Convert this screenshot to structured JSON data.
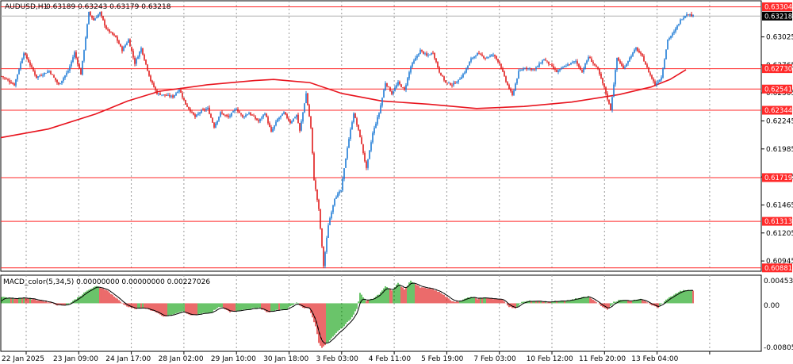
{
  "header": {
    "symbol": "AUDUSD,H1",
    "ohlc": "0.63189 0.63243 0.63179 0.63218"
  },
  "indicator": {
    "label": "MACD_color(5,34,5) 0.00000000 0.00000000 0.00227026",
    "ticks": [
      "0.0045392",
      "0.00",
      "-0.0080563"
    ]
  },
  "chart_data": {
    "type": "candlestick",
    "symbol": "AUDUSD",
    "timeframe": "H1",
    "ylim": [
      0.6085,
      0.6336
    ],
    "y_ticks": [
      "0.63025",
      "0.62765",
      "0.62505",
      "0.62245",
      "0.61985",
      "0.61725",
      "0.61465",
      "0.61205",
      "0.60945"
    ],
    "x_ticks": [
      "22 Jan 2025",
      "23 Jan 09:00",
      "24 Jan 17:00",
      "28 Jan 02:00",
      "29 Jan 10:00",
      "30 Jan 18:00",
      "3 Feb 03:00",
      "4 Feb 11:00",
      "5 Feb 19:00",
      "7 Feb 03:00",
      "10 Feb 12:00",
      "11 Feb 20:00",
      "13 Feb 04:00"
    ],
    "horizontal_levels": [
      "0.63304",
      "0.62730",
      "0.62541",
      "0.62344",
      "0.61719",
      "0.61313",
      "0.60881"
    ],
    "current_price": "0.63218",
    "grid": true,
    "colors": {
      "bull": "#1e7bd6",
      "bear": "#e01b1b",
      "level": "#ff2a2a",
      "ma": "#e8141e",
      "macd_pos": "#1aa31a",
      "macd_neg": "#e01b1b",
      "signal": "#000000",
      "current": "#000000"
    },
    "close_path": [
      [
        0,
        0.6266
      ],
      [
        8,
        0.6258
      ],
      [
        14,
        0.6288
      ],
      [
        22,
        0.6265
      ],
      [
        30,
        0.6271
      ],
      [
        36,
        0.6258
      ],
      [
        42,
        0.6271
      ],
      [
        46,
        0.6288
      ],
      [
        50,
        0.6268
      ],
      [
        55,
        0.6325
      ],
      [
        58,
        0.6318
      ],
      [
        62,
        0.6325
      ],
      [
        66,
        0.631
      ],
      [
        72,
        0.6302
      ],
      [
        76,
        0.629
      ],
      [
        80,
        0.63
      ],
      [
        84,
        0.6278
      ],
      [
        88,
        0.6292
      ],
      [
        94,
        0.6262
      ],
      [
        98,
        0.625
      ],
      [
        104,
        0.6248
      ],
      [
        108,
        0.6247
      ],
      [
        112,
        0.6254
      ],
      [
        116,
        0.624
      ],
      [
        122,
        0.6228
      ],
      [
        126,
        0.6234
      ],
      [
        130,
        0.6236
      ],
      [
        134,
        0.6219
      ],
      [
        138,
        0.6232
      ],
      [
        143,
        0.6228
      ],
      [
        148,
        0.6236
      ],
      [
        152,
        0.6228
      ],
      [
        156,
        0.6232
      ],
      [
        162,
        0.6224
      ],
      [
        166,
        0.6232
      ],
      [
        170,
        0.6214
      ],
      [
        174,
        0.6226
      ],
      [
        178,
        0.6232
      ],
      [
        182,
        0.6223
      ],
      [
        186,
        0.623
      ],
      [
        188,
        0.6215
      ],
      [
        192,
        0.625
      ],
      [
        195,
        0.6218
      ],
      [
        197,
        0.617
      ],
      [
        200,
        0.6142
      ],
      [
        203,
        0.609
      ],
      [
        206,
        0.6128
      ],
      [
        210,
        0.6153
      ],
      [
        214,
        0.616
      ],
      [
        218,
        0.62
      ],
      [
        222,
        0.6232
      ],
      [
        226,
        0.621
      ],
      [
        230,
        0.618
      ],
      [
        234,
        0.6213
      ],
      [
        238,
        0.6232
      ],
      [
        242,
        0.626
      ],
      [
        246,
        0.625
      ],
      [
        250,
        0.626
      ],
      [
        254,
        0.6253
      ],
      [
        258,
        0.6275
      ],
      [
        264,
        0.629
      ],
      [
        268,
        0.6285
      ],
      [
        272,
        0.6288
      ],
      [
        276,
        0.627
      ],
      [
        280,
        0.626
      ],
      [
        284,
        0.6258
      ],
      [
        288,
        0.6262
      ],
      [
        292,
        0.627
      ],
      [
        296,
        0.6282
      ],
      [
        300,
        0.6287
      ],
      [
        305,
        0.6283
      ],
      [
        310,
        0.6286
      ],
      [
        314,
        0.6278
      ],
      [
        318,
        0.6261
      ],
      [
        322,
        0.6248
      ],
      [
        326,
        0.627
      ],
      [
        330,
        0.6274
      ],
      [
        336,
        0.6272
      ],
      [
        342,
        0.6282
      ],
      [
        346,
        0.6276
      ],
      [
        350,
        0.627
      ],
      [
        356,
        0.6276
      ],
      [
        362,
        0.628
      ],
      [
        366,
        0.627
      ],
      [
        370,
        0.6284
      ],
      [
        376,
        0.6272
      ],
      [
        380,
        0.6255
      ],
      [
        384,
        0.6235
      ],
      [
        388,
        0.6283
      ],
      [
        392,
        0.6273
      ],
      [
        396,
        0.6283
      ],
      [
        400,
        0.6292
      ],
      [
        404,
        0.6284
      ],
      [
        408,
        0.627
      ],
      [
        412,
        0.6258
      ],
      [
        416,
        0.6265
      ],
      [
        420,
        0.63
      ],
      [
        424,
        0.6307
      ],
      [
        428,
        0.6318
      ],
      [
        432,
        0.6324
      ],
      [
        436,
        0.6322
      ]
    ],
    "moving_average": [
      [
        0,
        0.6209
      ],
      [
        30,
        0.6217
      ],
      [
        60,
        0.6231
      ],
      [
        80,
        0.6243
      ],
      [
        100,
        0.6252
      ],
      [
        130,
        0.6258
      ],
      [
        160,
        0.6262
      ],
      [
        172,
        0.6263
      ],
      [
        195,
        0.626
      ],
      [
        215,
        0.625
      ],
      [
        240,
        0.6243
      ],
      [
        270,
        0.624
      ],
      [
        300,
        0.6236
      ],
      [
        330,
        0.6238
      ],
      [
        360,
        0.6242
      ],
      [
        390,
        0.6249
      ],
      [
        410,
        0.6256
      ],
      [
        422,
        0.6263
      ],
      [
        432,
        0.6272
      ]
    ],
    "macd": {
      "ylim": [
        -0.0080563,
        0.0045392
      ],
      "histogram": [
        [
          0,
          0.0012
        ],
        [
          8,
          0.0008
        ],
        [
          14,
          0.001
        ],
        [
          22,
          0.0006
        ],
        [
          30,
          0.0002
        ],
        [
          36,
          -0.0004
        ],
        [
          42,
          -0.0002
        ],
        [
          46,
          0.0006
        ],
        [
          50,
          0.0014
        ],
        [
          55,
          0.0024
        ],
        [
          60,
          0.003
        ],
        [
          66,
          0.0024
        ],
        [
          72,
          0.001
        ],
        [
          78,
          -0.0004
        ],
        [
          84,
          -0.001
        ],
        [
          90,
          -0.0008
        ],
        [
          96,
          -0.0014
        ],
        [
          102,
          -0.0024
        ],
        [
          108,
          -0.002
        ],
        [
          114,
          -0.0014
        ],
        [
          120,
          -0.0022
        ],
        [
          126,
          -0.0018
        ],
        [
          132,
          -0.0016
        ],
        [
          138,
          -0.0006
        ],
        [
          144,
          -0.0016
        ],
        [
          150,
          -0.0012
        ],
        [
          156,
          -0.001
        ],
        [
          162,
          -0.0008
        ],
        [
          168,
          -0.0016
        ],
        [
          174,
          -0.0012
        ],
        [
          180,
          -0.001
        ],
        [
          186,
          0.0002
        ],
        [
          190,
          -0.0008
        ],
        [
          194,
          -0.001
        ],
        [
          198,
          -0.004
        ],
        [
          200,
          -0.007
        ],
        [
          202,
          -0.0078
        ],
        [
          204,
          -0.0074
        ],
        [
          208,
          -0.0062
        ],
        [
          212,
          -0.005
        ],
        [
          216,
          -0.004
        ],
        [
          220,
          -0.0028
        ],
        [
          224,
          -0.001
        ],
        [
          226,
          0.0018
        ],
        [
          230,
          0.0004
        ],
        [
          234,
          0.0008
        ],
        [
          238,
          0.0016
        ],
        [
          242,
          0.003
        ],
        [
          246,
          0.0022
        ],
        [
          250,
          0.0036
        ],
        [
          254,
          0.0024
        ],
        [
          258,
          0.004
        ],
        [
          264,
          0.0028
        ],
        [
          270,
          0.0026
        ],
        [
          276,
          0.002
        ],
        [
          280,
          0.0012
        ],
        [
          284,
          0.0004
        ],
        [
          288,
          0.0002
        ],
        [
          292,
          0.0008
        ],
        [
          296,
          0.0012
        ],
        [
          300,
          0.0008
        ],
        [
          305,
          0.001
        ],
        [
          310,
          0.0008
        ],
        [
          316,
          0.0006
        ],
        [
          320,
          -0.0006
        ],
        [
          324,
          -0.001
        ],
        [
          328,
          0.0002
        ],
        [
          332,
          0.0004
        ],
        [
          338,
          0.0004
        ],
        [
          344,
          0.0002
        ],
        [
          350,
          0.0004
        ],
        [
          356,
          0.0004
        ],
        [
          362,
          0.0008
        ],
        [
          366,
          0.001
        ],
        [
          370,
          0.0012
        ],
        [
          374,
          0.0004
        ],
        [
          378,
          -0.0004
        ],
        [
          382,
          -0.0012
        ],
        [
          386,
          0.0002
        ],
        [
          390,
          0.0006
        ],
        [
          396,
          0.0004
        ],
        [
          402,
          0.0008
        ],
        [
          406,
          0.0004
        ],
        [
          410,
          -0.0004
        ],
        [
          414,
          -0.0008
        ],
        [
          418,
          0.0004
        ],
        [
          422,
          0.0012
        ],
        [
          428,
          0.0022
        ],
        [
          432,
          0.0023
        ]
      ]
    }
  }
}
